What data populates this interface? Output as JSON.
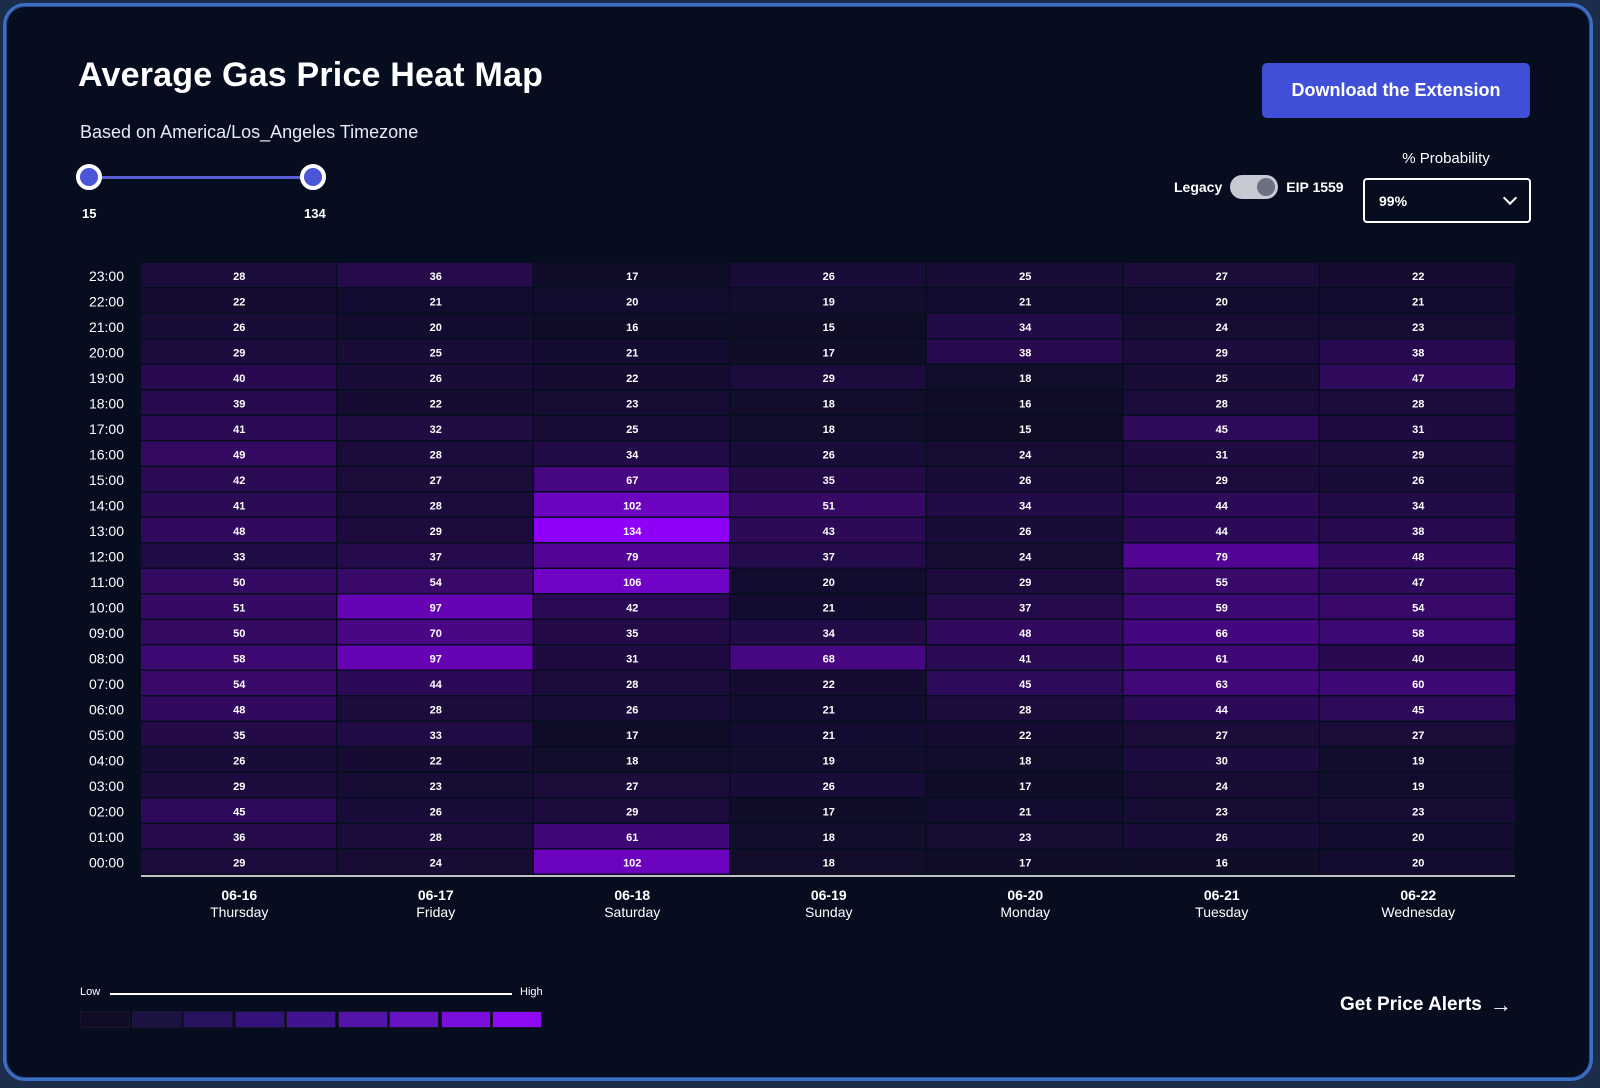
{
  "title": "Average Gas Price Heat Map",
  "subtitle": "Based on America/Los_Angeles Timezone",
  "range_slider": {
    "min": "15",
    "max": "134"
  },
  "download_button": "Download the Extension",
  "toggle": {
    "left_label": "Legacy",
    "right_label": "EIP 1559"
  },
  "probability": {
    "label": "% Probability",
    "selected": "99%"
  },
  "legend": {
    "low": "Low",
    "high": "High",
    "swatches": [
      "#0e0d25",
      "#1c1343",
      "#27135f",
      "#33137a",
      "#421390",
      "#5414a8",
      "#6712c3",
      "#7a0fdc",
      "#8e0af2"
    ]
  },
  "alerts_link": "Get Price Alerts",
  "alerts_icon": "arrow-right-icon",
  "colors": {
    "accent": "#3f4fd7",
    "low": "#0e0d25",
    "high": "#8e00f6",
    "background": "#050d1f"
  },
  "chart_data": {
    "type": "heatmap",
    "title": "Average Gas Price Heat Map",
    "x_dates": [
      "06-16",
      "06-17",
      "06-18",
      "06-19",
      "06-20",
      "06-21",
      "06-22"
    ],
    "x_days": [
      "Thursday",
      "Friday",
      "Saturday",
      "Sunday",
      "Monday",
      "Tuesday",
      "Wednesday"
    ],
    "y": [
      "23:00",
      "22:00",
      "21:00",
      "20:00",
      "19:00",
      "18:00",
      "17:00",
      "16:00",
      "15:00",
      "14:00",
      "13:00",
      "12:00",
      "11:00",
      "10:00",
      "09:00",
      "08:00",
      "07:00",
      "06:00",
      "05:00",
      "04:00",
      "03:00",
      "02:00",
      "01:00",
      "00:00"
    ],
    "values": [
      [
        28,
        36,
        17,
        26,
        25,
        27,
        22
      ],
      [
        22,
        21,
        20,
        19,
        21,
        20,
        21
      ],
      [
        26,
        20,
        16,
        15,
        34,
        24,
        23
      ],
      [
        29,
        25,
        21,
        17,
        38,
        29,
        38
      ],
      [
        40,
        26,
        22,
        29,
        18,
        25,
        47
      ],
      [
        39,
        22,
        23,
        18,
        16,
        28,
        28
      ],
      [
        41,
        32,
        25,
        18,
        15,
        45,
        31
      ],
      [
        49,
        28,
        34,
        26,
        24,
        31,
        29
      ],
      [
        42,
        27,
        67,
        35,
        26,
        29,
        26
      ],
      [
        41,
        28,
        102,
        51,
        34,
        44,
        34
      ],
      [
        48,
        29,
        134,
        43,
        26,
        44,
        38
      ],
      [
        33,
        37,
        79,
        37,
        24,
        79,
        48
      ],
      [
        50,
        54,
        106,
        20,
        29,
        55,
        47
      ],
      [
        51,
        97,
        42,
        21,
        37,
        59,
        54
      ],
      [
        50,
        70,
        35,
        34,
        48,
        66,
        58
      ],
      [
        58,
        97,
        31,
        68,
        41,
        61,
        40
      ],
      [
        54,
        44,
        28,
        22,
        45,
        63,
        60
      ],
      [
        48,
        28,
        26,
        21,
        28,
        44,
        45
      ],
      [
        35,
        33,
        17,
        21,
        22,
        27,
        27
      ],
      [
        26,
        22,
        18,
        19,
        18,
        30,
        19
      ],
      [
        29,
        23,
        27,
        26,
        17,
        24,
        19
      ],
      [
        45,
        26,
        29,
        17,
        21,
        23,
        23
      ],
      [
        36,
        28,
        61,
        18,
        23,
        26,
        20
      ],
      [
        29,
        24,
        102,
        18,
        17,
        16,
        20
      ]
    ],
    "range": [
      15,
      134
    ]
  }
}
